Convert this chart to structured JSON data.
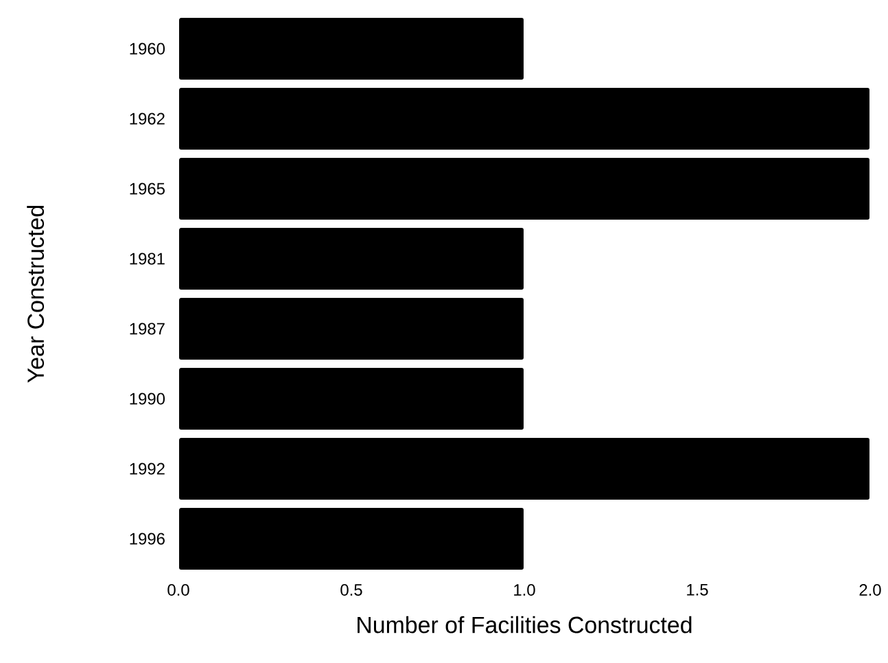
{
  "chart_data": {
    "type": "bar",
    "orientation": "horizontal",
    "xlabel": "Number of Facilities Constructed",
    "ylabel": "Year Constructed",
    "categories": [
      "1960",
      "1962",
      "1965",
      "1981",
      "1987",
      "1990",
      "1992",
      "1996"
    ],
    "values": [
      1,
      2,
      2,
      1,
      1,
      1,
      2,
      1
    ],
    "color": "#000000",
    "xlim": [
      0,
      2
    ],
    "xticks": [
      {
        "value": 0,
        "label": "0.0"
      },
      {
        "value": 0.5,
        "label": "0.5"
      },
      {
        "value": 1,
        "label": "1.0"
      },
      {
        "value": 1.5,
        "label": "1.5"
      },
      {
        "value": 2,
        "label": "2.0"
      }
    ],
    "grid": false
  }
}
